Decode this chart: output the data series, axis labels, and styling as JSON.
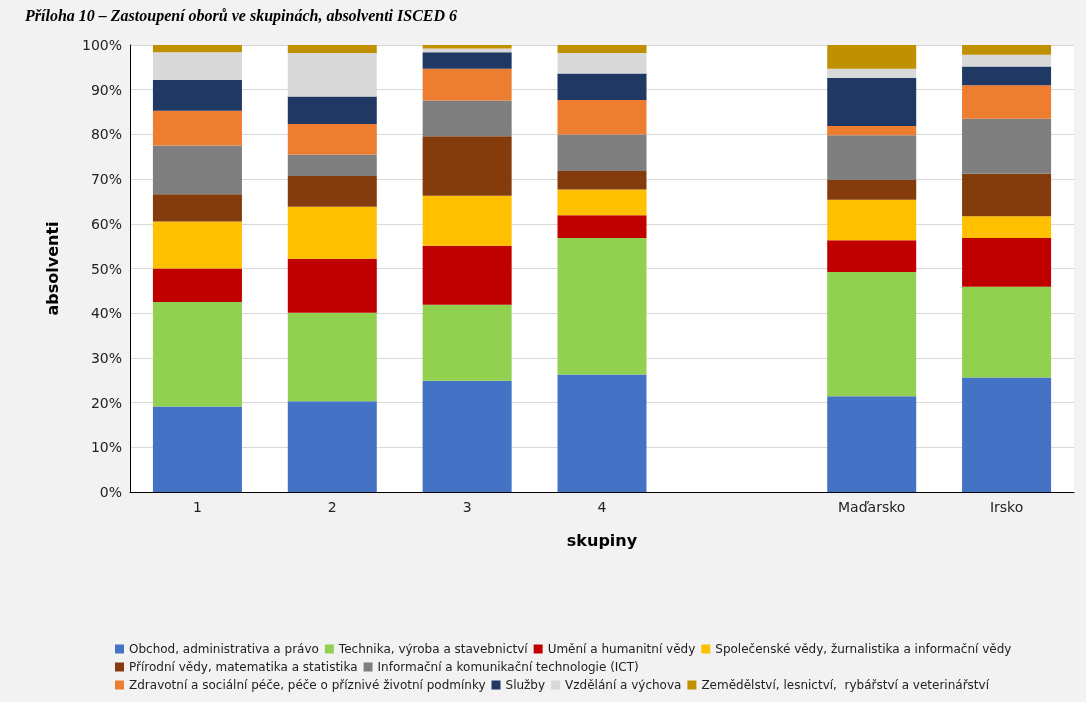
{
  "chart_data": {
    "type": "bar",
    "stacked": true,
    "title": "Příloha 10 – Zastoupení oborů ve skupinách, absolventi ISCED 6",
    "xlabel": "skupiny",
    "ylabel": "absolventi",
    "categories": [
      "1",
      "2",
      "3",
      "4",
      null,
      "Maďarsko",
      "Irsko"
    ],
    "ylim": [
      0,
      100
    ],
    "yticks": [
      {
        "value": 0,
        "label": "0%"
      },
      {
        "value": 10,
        "label": "10%"
      },
      {
        "value": 20,
        "label": "20%"
      },
      {
        "value": 30,
        "label": "30%"
      },
      {
        "value": 40,
        "label": "40%"
      },
      {
        "value": 50,
        "label": "50%"
      },
      {
        "value": 60,
        "label": "60%"
      },
      {
        "value": 70,
        "label": "70%"
      },
      {
        "value": 80,
        "label": "80%"
      },
      {
        "value": 90,
        "label": "90%"
      },
      {
        "value": 100,
        "label": "100%"
      }
    ],
    "grid": "y",
    "legend": "bottom",
    "series": [
      {
        "name": "Obchod, administrativa a právo",
        "color": "#4472c4",
        "values": [
          19.1,
          20.3,
          24.9,
          26.3,
          null,
          21.4,
          25.6
        ]
      },
      {
        "name": "Technika, výroba a stavebnictví",
        "color": "#92d050",
        "values": [
          23.4,
          19.8,
          17.0,
          30.5,
          null,
          27.8,
          20.3
        ]
      },
      {
        "name": "Umění a humanitní vědy",
        "color": "#c00000",
        "values": [
          7.5,
          12.1,
          13.2,
          5.1,
          null,
          7.1,
          10.9
        ]
      },
      {
        "name": "Společenské vědy, žurnalistika a informační vědy",
        "color": "#ffc000",
        "values": [
          10.5,
          11.6,
          11.2,
          5.8,
          null,
          9.1,
          4.9
        ]
      },
      {
        "name": "Přírodní vědy, matematika a statistika",
        "color": "#843c0c",
        "values": [
          6.1,
          6.9,
          13.3,
          4.1,
          null,
          4.4,
          9.5
        ]
      },
      {
        "name": "Informační a komunikační technologie (ICT)",
        "color": "#7f7f7f",
        "values": [
          10.9,
          4.8,
          8.0,
          8.2,
          null,
          10.0,
          12.3
        ]
      },
      {
        "name": "Zdravotní a sociální péče, péče o příznivé životní podmínky",
        "color": "#ed7d31",
        "values": [
          7.8,
          6.8,
          7.1,
          7.7,
          null,
          2.1,
          7.5
        ]
      },
      {
        "name": "Služby",
        "color": "#203864",
        "values": [
          6.9,
          6.2,
          3.7,
          5.9,
          null,
          10.7,
          4.2
        ]
      },
      {
        "name": "Vzdělání a výchova",
        "color": "#d9d9d9",
        "values": [
          6.2,
          9.7,
          0.8,
          4.6,
          null,
          2.1,
          2.6
        ]
      },
      {
        "name": "Zemědělství, lesnictví,  rybářství a veterinářství",
        "color": "#bf9000",
        "values": [
          1.6,
          1.8,
          0.8,
          1.8,
          null,
          5.3,
          2.2
        ]
      }
    ]
  }
}
